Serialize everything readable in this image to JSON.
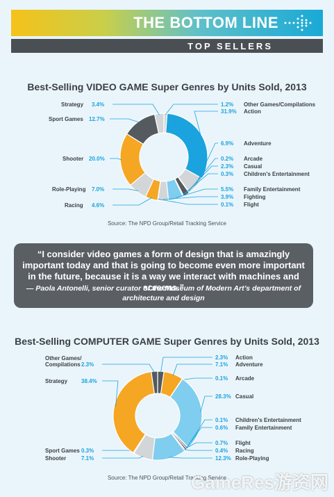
{
  "header": {
    "title": "THE BOTTOM LINE",
    "subtitle": "TOP SELLERS"
  },
  "colors": {
    "blue": "#1aa3de",
    "orange": "#f5a623",
    "dark": "#555a5f",
    "light_gray": "#d3d6d8",
    "light_blue": "#7fcdef",
    "white": "#ffffff",
    "line": "#1aa3de"
  },
  "quote": {
    "text": "“I consider video games a form of design that is amazingly important today and that is going to become even more important in the future, because it is a way we interact with machines and screens.”",
    "attribution": "— Paola Antonelli, senior curator of the Museum of Modern Art’s department of architecture and design"
  },
  "watermark": "GameRes游资网",
  "chart_data": [
    {
      "type": "pie",
      "title": "Best-Selling VIDEO GAME Super Genres by Units Sold, 2013",
      "source": "Source: The NPD Group/Retail Tracking Service",
      "slices": [
        {
          "name": "Other Games/Compilations",
          "value": 1.2,
          "label": "1.2%",
          "color": "#d3d6d8"
        },
        {
          "name": "Action",
          "value": 31.9,
          "label": "31.9%",
          "color": "#1aa3de"
        },
        {
          "name": "Adventure",
          "value": 6.9,
          "label": "6.9%",
          "color": "#d3d6d8"
        },
        {
          "name": "Arcade",
          "value": 0.2,
          "label": "0.2%",
          "color": "#555a5f"
        },
        {
          "name": "Casual",
          "value": 2.3,
          "label": "2.3%",
          "color": "#555a5f"
        },
        {
          "name": "Children's Entertainment",
          "value": 0.3,
          "label": "0.3%",
          "color": "#ffffff"
        },
        {
          "name": "Family Entertainment",
          "value": 5.5,
          "label": "5.5%",
          "color": "#7fcdef"
        },
        {
          "name": "Fighting",
          "value": 3.9,
          "label": "3.9%",
          "color": "#d3d6d8"
        },
        {
          "name": "Flight",
          "value": 0.1,
          "label": "0.1%",
          "color": "#555a5f"
        },
        {
          "name": "Racing",
          "value": 4.6,
          "label": "4.6%",
          "color": "#f5a623"
        },
        {
          "name": "Role-Playing",
          "value": 7.0,
          "label": "7.0%",
          "color": "#d3d6d8"
        },
        {
          "name": "Shooter",
          "value": 20.0,
          "label": "20.0%",
          "color": "#f5a623"
        },
        {
          "name": "Sport Games",
          "value": 12.7,
          "label": "12.7%",
          "color": "#555a5f"
        },
        {
          "name": "Strategy",
          "value": 3.4,
          "label": "3.4%",
          "color": "#d3d6d8"
        }
      ]
    },
    {
      "type": "pie",
      "title": "Best-Selling COMPUTER GAME Super Genres by Units Sold, 2013",
      "source": "Source: The NPD Group/Retail Tracking Service",
      "slices": [
        {
          "name": "Action",
          "value": 2.3,
          "label": "2.3%",
          "color": "#555a5f"
        },
        {
          "name": "Adventure",
          "value": 7.1,
          "label": "7.1%",
          "color": "#f5a623"
        },
        {
          "name": "Arcade",
          "value": 0.1,
          "label": "0.1%",
          "color": "#555a5f"
        },
        {
          "name": "Casual",
          "value": 28.3,
          "label": "28.3%",
          "color": "#7fcdef"
        },
        {
          "name": "Children's Entertainment",
          "value": 0.1,
          "label": "0.1%",
          "color": "#555a5f"
        },
        {
          "name": "Family Entertainment",
          "value": 0.6,
          "label": "0.6%",
          "color": "#555a5f"
        },
        {
          "name": "Flight",
          "value": 0.7,
          "label": "0.7%",
          "color": "#555a5f"
        },
        {
          "name": "Racing",
          "value": 0.4,
          "label": "0.4%",
          "color": "#555a5f"
        },
        {
          "name": "Role-Playing",
          "value": 12.3,
          "label": "12.3%",
          "color": "#7fcdef"
        },
        {
          "name": "Shooter",
          "value": 7.1,
          "label": "7.1%",
          "color": "#d3d6d8"
        },
        {
          "name": "Sport Games",
          "value": 0.3,
          "label": "0.3%",
          "color": "#555a5f"
        },
        {
          "name": "Strategy",
          "value": 38.4,
          "label": "38.4%",
          "color": "#f5a623"
        },
        {
          "name": "Other Games/Compilations",
          "value": 2.3,
          "label": "2.3%",
          "color": "#555a5f"
        }
      ]
    }
  ]
}
